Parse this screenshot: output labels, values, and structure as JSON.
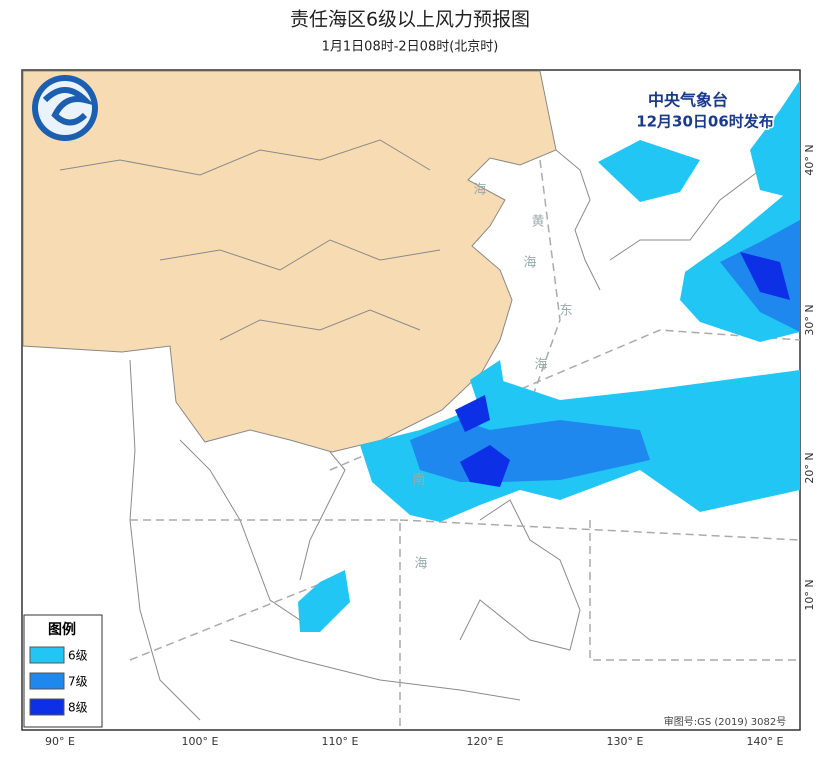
{
  "header": {
    "title": "责任海区6级以上风力预报图",
    "subtitle": "1月1日08时-2日08时(北京时)"
  },
  "issuer": {
    "name": "中央气象台",
    "time": "12月30日06时发布"
  },
  "legend": {
    "title": "图例",
    "items": [
      {
        "label": "6级",
        "color": "#22c6f4"
      },
      {
        "label": "7级",
        "color": "#1e88ef"
      },
      {
        "label": "8级",
        "color": "#0d2fe6"
      }
    ]
  },
  "longitude_labels": [
    "90° E",
    "100° E",
    "110° E",
    "120° E",
    "130° E",
    "140° E"
  ],
  "latitude_labels": [
    "40° N",
    "30° N",
    "20° N",
    "10° N"
  ],
  "sea_labels": [
    "海",
    "黄",
    "海",
    "东",
    "海",
    "南",
    "海"
  ],
  "review_number": "审图号:GS (2019) 3082号"
}
